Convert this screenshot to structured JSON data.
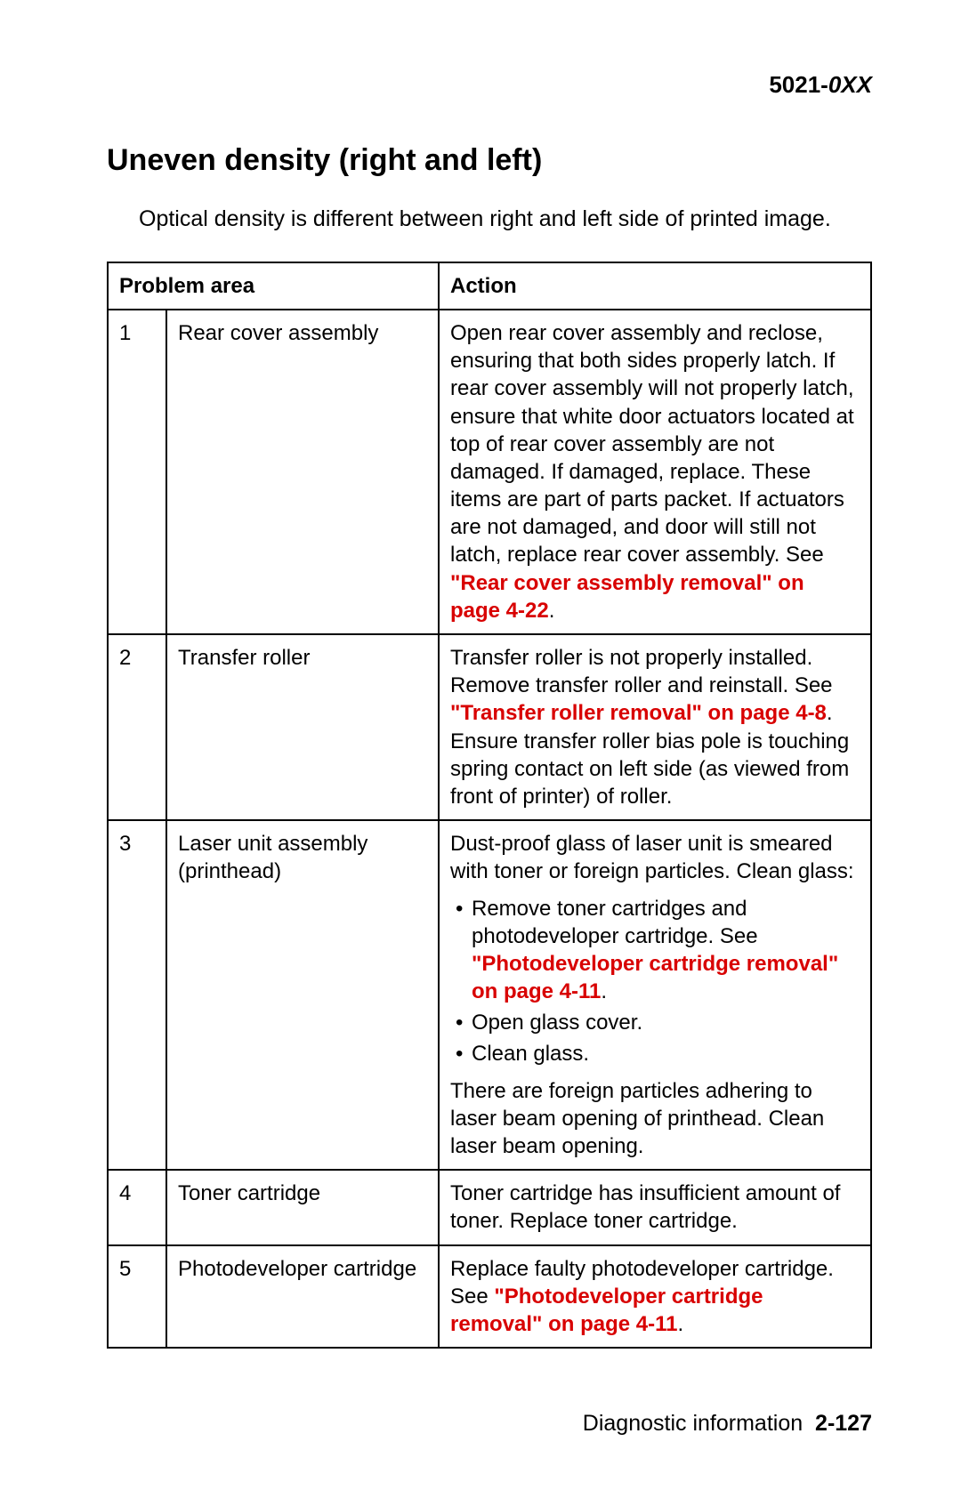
{
  "header": {
    "model_prefix": "5021-",
    "model_suffix": "0XX"
  },
  "section": {
    "title": "Uneven density (right and left)",
    "intro": "Optical density is different between right and left side of printed image."
  },
  "table": {
    "columns": {
      "problem": "Problem area",
      "action": "Action"
    },
    "rows": [
      {
        "num": "1",
        "problem": "Rear cover assembly",
        "action_pre": "Open rear cover assembly and reclose, ensuring that both sides properly latch. If rear cover assembly will not properly latch, ensure that white door actuators located at top of rear cover assembly are not damaged. If damaged, replace. These items are part of parts packet. If actuators are not damaged, and door will still not latch, replace rear cover assembly. See ",
        "link": "\"Rear cover assembly removal\" on page 4-22",
        "action_post": "."
      },
      {
        "num": "2",
        "problem": "Transfer roller",
        "action_pre": "Transfer roller is not properly installed. Remove transfer roller and reinstall. See ",
        "link": "\"Transfer roller removal\" on page 4-8",
        "action_post": ". Ensure transfer roller bias pole is touching spring contact on left side (as viewed from front of printer) of roller."
      },
      {
        "num": "3",
        "problem": "Laser unit assembly (printhead)",
        "intro": "Dust-proof glass of laser unit is smeared with toner or foreign particles. Clean glass:",
        "bullet1_pre": "Remove toner cartridges and photodeveloper cartridge. See ",
        "bullet1_link": "\"Photodeveloper cartridge removal\" on page 4-11",
        "bullet1_post": ".",
        "bullet2": "Open glass cover.",
        "bullet3": "Clean glass.",
        "outro": "There are foreign particles adhering to laser beam opening of printhead. Clean laser beam opening."
      },
      {
        "num": "4",
        "problem": "Toner cartridge",
        "action": "Toner cartridge has insufficient amount of toner. Replace toner cartridge."
      },
      {
        "num": "5",
        "problem": "Photodeveloper cartridge",
        "action_pre": "Replace faulty photodeveloper cartridge. See ",
        "link": "\"Photodeveloper cartridge removal\" on page 4-11",
        "action_post": "."
      }
    ]
  },
  "footer": {
    "label": "Diagnostic information",
    "page": "2-127"
  },
  "style": {
    "link_color": "#d80000",
    "text_color": "#000000",
    "background": "#ffffff",
    "border_color": "#000000"
  }
}
